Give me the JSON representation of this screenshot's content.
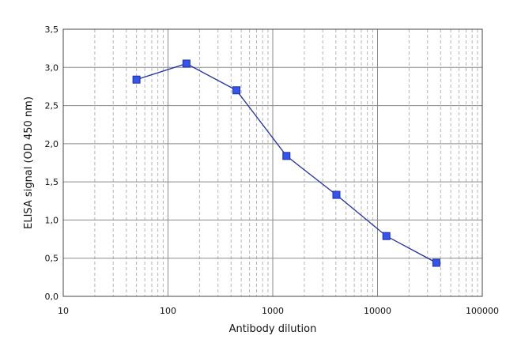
{
  "chart_data": {
    "type": "line",
    "title": "",
    "xlabel": "Antibody dilution",
    "ylabel": "ELISA signal (OD 450 nm)",
    "x_scale": "log",
    "xlim": [
      10,
      100000
    ],
    "ylim": [
      0,
      3.5
    ],
    "x_ticks": [
      "10",
      "100",
      "1000",
      "10000",
      "100000"
    ],
    "y_ticks": [
      "0,0",
      "0,5",
      "1,0",
      "1,5",
      "2,0",
      "2,5",
      "3,0",
      "3,5"
    ],
    "grid": {
      "major": "solid",
      "minor_x": "dashed"
    },
    "legend": "none",
    "series": [
      {
        "x": [
          50,
          150,
          450,
          1350,
          4050,
          12150,
          36450
        ],
        "y": [
          2.84,
          3.05,
          2.7,
          1.84,
          1.33,
          0.79,
          0.44
        ],
        "color": "#1f2fa8",
        "marker_color": "#3355ee",
        "marker": "square"
      }
    ]
  }
}
